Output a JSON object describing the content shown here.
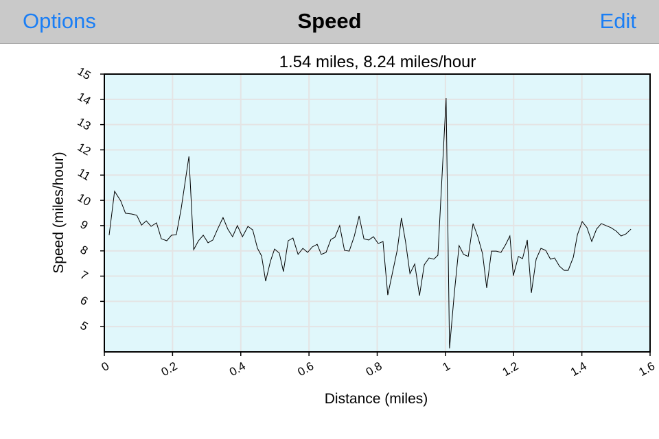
{
  "nav": {
    "left": "Options",
    "title": "Speed",
    "right": "Edit"
  },
  "chart_data": {
    "type": "line",
    "title": "1.54 miles, 8.24 miles/hour",
    "x_label": "Distance (miles)",
    "y_label": "Speed (miles/hour)",
    "color": "#000000",
    "background": "#e0f7fb",
    "grid": true,
    "xlim": [
      0,
      1.6
    ],
    "xticks": [
      0,
      0.2,
      0.4,
      0.6,
      0.8,
      1,
      1.2,
      1.4,
      1.6
    ],
    "ylim": [
      4,
      15
    ],
    "yticks": [
      5,
      6,
      7,
      8,
      9,
      10,
      11,
      12,
      13,
      14,
      15
    ],
    "x": [
      0.014,
      0.03,
      0.048,
      0.062,
      0.08,
      0.095,
      0.109,
      0.123,
      0.137,
      0.153,
      0.167,
      0.183,
      0.197,
      0.211,
      0.225,
      0.248,
      0.262,
      0.276,
      0.29,
      0.304,
      0.318,
      0.332,
      0.348,
      0.362,
      0.376,
      0.39,
      0.405,
      0.421,
      0.435,
      0.449,
      0.461,
      0.473,
      0.487,
      0.499,
      0.513,
      0.525,
      0.539,
      0.553,
      0.568,
      0.582,
      0.596,
      0.61,
      0.624,
      0.636,
      0.65,
      0.664,
      0.676,
      0.69,
      0.704,
      0.718,
      0.733,
      0.747,
      0.761,
      0.775,
      0.789,
      0.803,
      0.817,
      0.831,
      0.845,
      0.859,
      0.871,
      0.883,
      0.896,
      0.91,
      0.924,
      0.938,
      0.952,
      0.966,
      0.978,
      1.002,
      1.012,
      1.026,
      1.04,
      1.053,
      1.067,
      1.081,
      1.095,
      1.109,
      1.121,
      1.135,
      1.149,
      1.163,
      1.177,
      1.189,
      1.199,
      1.214,
      1.226,
      1.24,
      1.252,
      1.266,
      1.28,
      1.294,
      1.308,
      1.32,
      1.334,
      1.348,
      1.36,
      1.375,
      1.387,
      1.401,
      1.415,
      1.429,
      1.443,
      1.457,
      1.471,
      1.485,
      1.501,
      1.515,
      1.529,
      1.544
    ],
    "values": [
      8.62,
      10.36,
      9.98,
      9.49,
      9.46,
      9.41,
      9.02,
      9.19,
      8.97,
      9.11,
      8.48,
      8.4,
      8.62,
      8.64,
      9.65,
      11.74,
      8.05,
      8.4,
      8.62,
      8.32,
      8.43,
      8.86,
      9.32,
      8.86,
      8.56,
      9.0,
      8.56,
      8.97,
      8.83,
      8.1,
      7.8,
      6.8,
      7.59,
      8.07,
      7.91,
      7.18,
      8.4,
      8.51,
      7.86,
      8.1,
      7.94,
      8.16,
      8.26,
      7.86,
      7.94,
      8.45,
      8.54,
      9.0,
      8.02,
      7.99,
      8.59,
      9.38,
      8.48,
      8.43,
      8.56,
      8.29,
      8.37,
      6.25,
      7.15,
      8.05,
      9.3,
      8.37,
      7.1,
      7.48,
      6.23,
      7.45,
      7.72,
      7.67,
      7.83,
      14.05,
      4.14,
      6.31,
      8.21,
      7.86,
      7.78,
      9.08,
      8.56,
      7.88,
      6.53,
      7.99,
      7.99,
      7.94,
      8.26,
      8.59,
      7.02,
      7.78,
      7.69,
      8.43,
      6.34,
      7.67,
      8.1,
      8.02,
      7.67,
      7.72,
      7.4,
      7.23,
      7.23,
      7.75,
      8.64,
      9.16,
      8.92,
      8.37,
      8.86,
      9.08,
      9.0,
      8.92,
      8.78,
      8.59,
      8.67,
      8.86
    ]
  }
}
